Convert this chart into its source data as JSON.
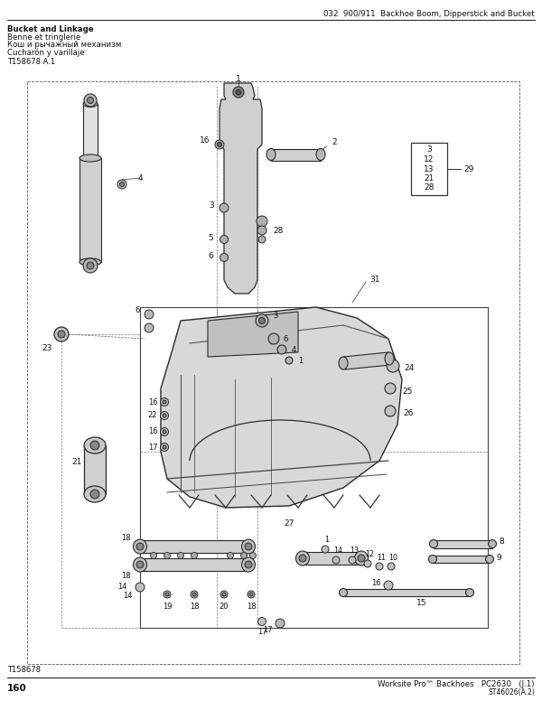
{
  "page_number": "160",
  "top_right_header": "032  900/911  Backhoe Boom, Dipperstick and Bucket",
  "top_left_lines": [
    "Bucket and Linkage",
    "Benne et tringlerie",
    "Кош и рычажный механизм",
    "Cucharón y varillaje"
  ],
  "figure_id_top": "T158678 A.1",
  "figure_id_bottom": "T158678",
  "bottom_center_right": "Worksite Pro™ Backhoes   PC2630   (J.1)",
  "bottom_right_small": "ST46026(A.2)",
  "bg": "#ffffff",
  "lc": "#2a2a2a",
  "callout_nums": [
    "3",
    "12",
    "13",
    "21",
    "28"
  ],
  "callout_arrow_label": "29"
}
